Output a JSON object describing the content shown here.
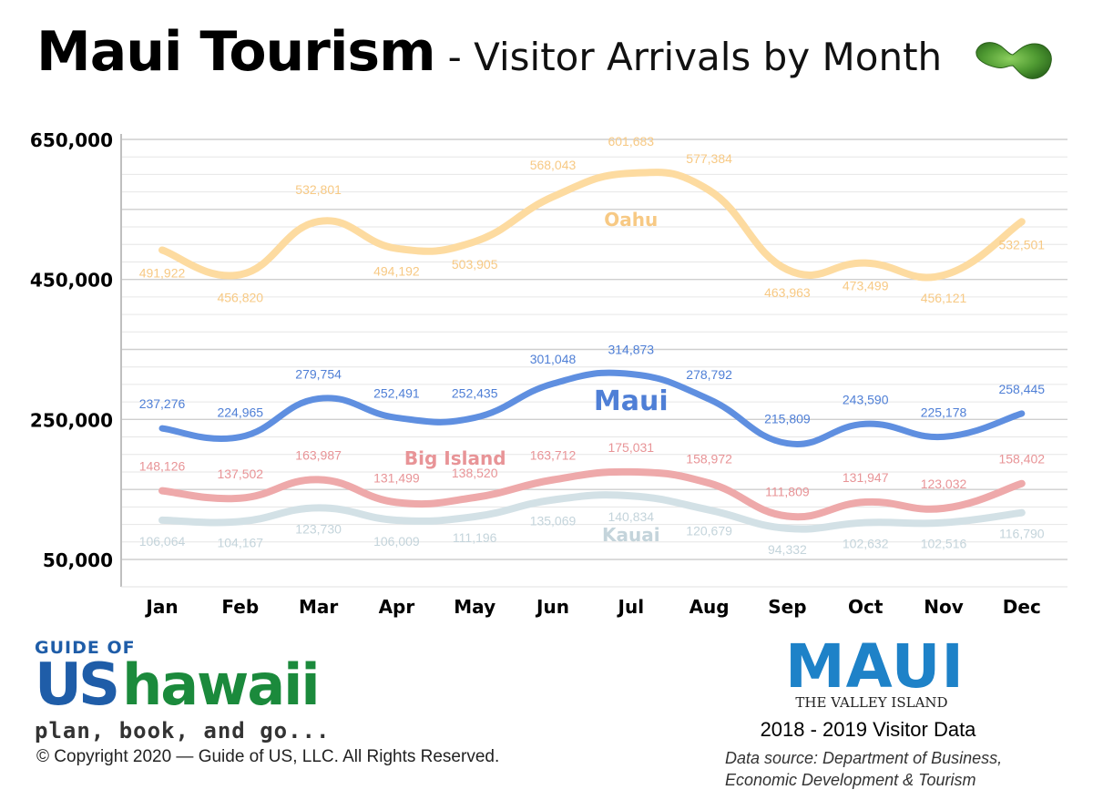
{
  "header": {
    "title": "Maui Tourism",
    "subtitle": "- Visitor Arrivals by Month"
  },
  "chart_data": {
    "type": "line",
    "categories": [
      "Jan",
      "Feb",
      "Mar",
      "Apr",
      "May",
      "Jun",
      "Jul",
      "Aug",
      "Sep",
      "Oct",
      "Nov",
      "Dec"
    ],
    "ylim": [
      50000,
      650000
    ],
    "yticks": [
      "650,000",
      "450,000",
      "250,000",
      "50,000"
    ],
    "ytick_values": [
      650000,
      450000,
      250000,
      50000
    ],
    "grid": true,
    "series": [
      {
        "name": "Oahu",
        "color": "#fddba0",
        "label_color": "#f7c984",
        "values": [
          491922,
          456820,
          532801,
          494192,
          503905,
          568043,
          601683,
          577384,
          463963,
          473499,
          456121,
          532501
        ],
        "labels": [
          "491,922",
          "456,820",
          "532,801",
          "494,192",
          "503,905",
          "568,043",
          "601,683",
          "577,384",
          "463,963",
          "473,499",
          "456,121",
          "532,501"
        ]
      },
      {
        "name": "Maui",
        "color": "#5f8fe0",
        "label_color": "#4f7fd6",
        "values": [
          237276,
          224965,
          279754,
          252491,
          252435,
          301048,
          314873,
          278792,
          215809,
          243590,
          225178,
          258445
        ],
        "labels": [
          "237,276",
          "224,965",
          "279,754",
          "252,491",
          "252,435",
          "301,048",
          "314,873",
          "278,792",
          "215,809",
          "243,590",
          "225,178",
          "258,445"
        ]
      },
      {
        "name": "Big Island",
        "color": "#eea9aa",
        "label_color": "#e89497",
        "values": [
          148126,
          137502,
          163987,
          131499,
          138520,
          163712,
          175031,
          158972,
          111809,
          131947,
          123032,
          158402
        ],
        "labels": [
          "148,126",
          "137,502",
          "163,987",
          "131,499",
          "138,520",
          "163,712",
          "175,031",
          "158,972",
          "111,809",
          "131,947",
          "123,032",
          "158,402"
        ]
      },
      {
        "name": "Kauai",
        "color": "#d3e1e6",
        "label_color": "#c4d4db",
        "values": [
          106064,
          104167,
          123730,
          106009,
          111196,
          135069,
          140834,
          120679,
          94332,
          102632,
          102516,
          116790
        ],
        "labels": [
          "106,064",
          "104,167",
          "123,730",
          "106,009",
          "111,196",
          "135,069",
          "140,834",
          "120,679",
          "94,332",
          "102,632",
          "102,516",
          "116,790"
        ]
      }
    ]
  },
  "footer": {
    "brand_guide": "GUIDE OF",
    "brand_us": "US",
    "brand_hawaii": "hawaii",
    "brand_tagline": "plan, book, and go...",
    "copyright": "© Copyright 2020 — Guide of US, LLC. All Rights Reserved.",
    "maui_logo_word": "MAUI",
    "maui_logo_tagline": "THE VALLEY ISLAND",
    "data_years": "2018 - 2019 Visitor Data",
    "data_source": "Data source: Department of Business, Economic Development & Tourism"
  }
}
